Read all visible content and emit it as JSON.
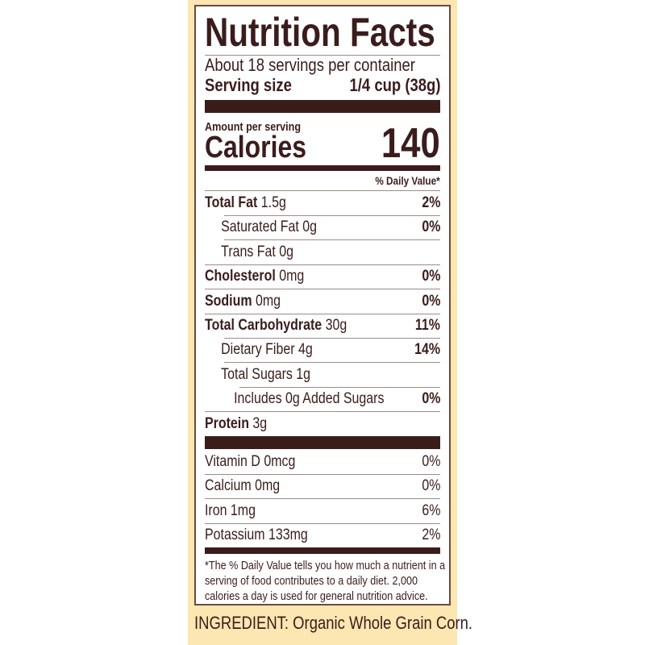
{
  "title": "Nutrition Facts",
  "servings": "About 18 servings per container",
  "serving_size_label": "Serving size",
  "serving_size_value": "1/4 cup (38g)",
  "amount_per_serving": "Amount per serving",
  "calories_label": "Calories",
  "calories_value": "140",
  "daily_value_header": "% Daily Value*",
  "nutrients": [
    {
      "name": "Total Fat",
      "amount": "1.5g",
      "dv": "2%"
    },
    {
      "name": "Saturated Fat 0g",
      "amount": "",
      "dv": "0%"
    },
    {
      "name": "Trans Fat 0g",
      "amount": "",
      "dv": ""
    },
    {
      "name": "Cholesterol",
      "amount": "0mg",
      "dv": "0%"
    },
    {
      "name": "Sodium",
      "amount": "0mg",
      "dv": "0%"
    },
    {
      "name": "Total Carbohydrate",
      "amount": "30g",
      "dv": "11%"
    },
    {
      "name": "Dietary Fiber 4g",
      "amount": "",
      "dv": "14%"
    },
    {
      "name": "Total Sugars 1g",
      "amount": "",
      "dv": ""
    },
    {
      "name": "Includes 0g Added Sugars",
      "amount": "",
      "dv": "0%"
    },
    {
      "name": "Protein",
      "amount": "3g",
      "dv": ""
    }
  ],
  "vitamins": [
    {
      "name": "Vitamin D 0mcg",
      "dv": "0%"
    },
    {
      "name": "Calcium 0mg",
      "dv": "0%"
    },
    {
      "name": "Iron 1mg",
      "dv": "6%"
    },
    {
      "name": "Potassium 133mg",
      "dv": "2%"
    }
  ],
  "footnote": "*The % Daily Value tells you how much a nutrient in a serving of food contributes to a daily diet. 2,000 calories a day is used for general nutrition advice.",
  "ingredient": "INGREDIENT: Organic Whole Grain Corn.",
  "colors": {
    "text": "#3a1d1b",
    "background_panel": "#fce6b1"
  }
}
